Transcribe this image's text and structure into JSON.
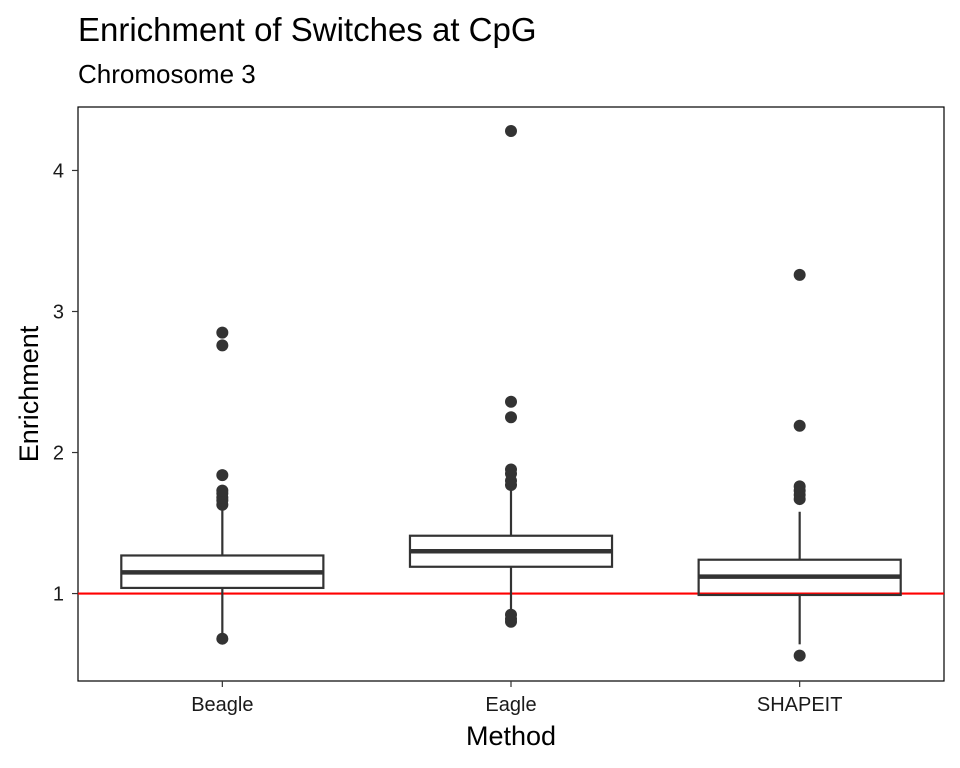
{
  "chart_data": {
    "type": "box",
    "title": "Enrichment of Switches at CpG",
    "subtitle": "Chromosome 3",
    "xlabel": "Method",
    "ylabel": "Enrichment",
    "categories": [
      "Beagle",
      "Eagle",
      "SHAPEIT"
    ],
    "ylim": [
      0.38,
      4.45
    ],
    "yticks": [
      1,
      2,
      3,
      4
    ],
    "grid": false,
    "reference_line": {
      "y": 1.0,
      "color": "#ff0000"
    },
    "box_color": "#333333",
    "boxes": [
      {
        "category": "Beagle",
        "q1": 1.04,
        "median": 1.15,
        "q3": 1.27,
        "whisker_low": 0.69,
        "whisker_high": 1.6,
        "outliers": [
          0.68,
          1.63,
          1.66,
          1.68,
          1.71,
          1.73,
          1.84,
          2.76,
          2.85
        ]
      },
      {
        "category": "Eagle",
        "q1": 1.19,
        "median": 1.3,
        "q3": 1.41,
        "whisker_low": 0.87,
        "whisker_high": 1.74,
        "outliers": [
          0.8,
          0.82,
          0.85,
          1.77,
          1.8,
          1.85,
          1.88,
          2.25,
          2.36,
          4.28
        ]
      },
      {
        "category": "SHAPEIT",
        "q1": 0.99,
        "median": 1.12,
        "q3": 1.24,
        "whisker_low": 0.64,
        "whisker_high": 1.58,
        "outliers": [
          0.56,
          1.67,
          1.7,
          1.73,
          1.76,
          2.19,
          3.26
        ]
      }
    ]
  }
}
